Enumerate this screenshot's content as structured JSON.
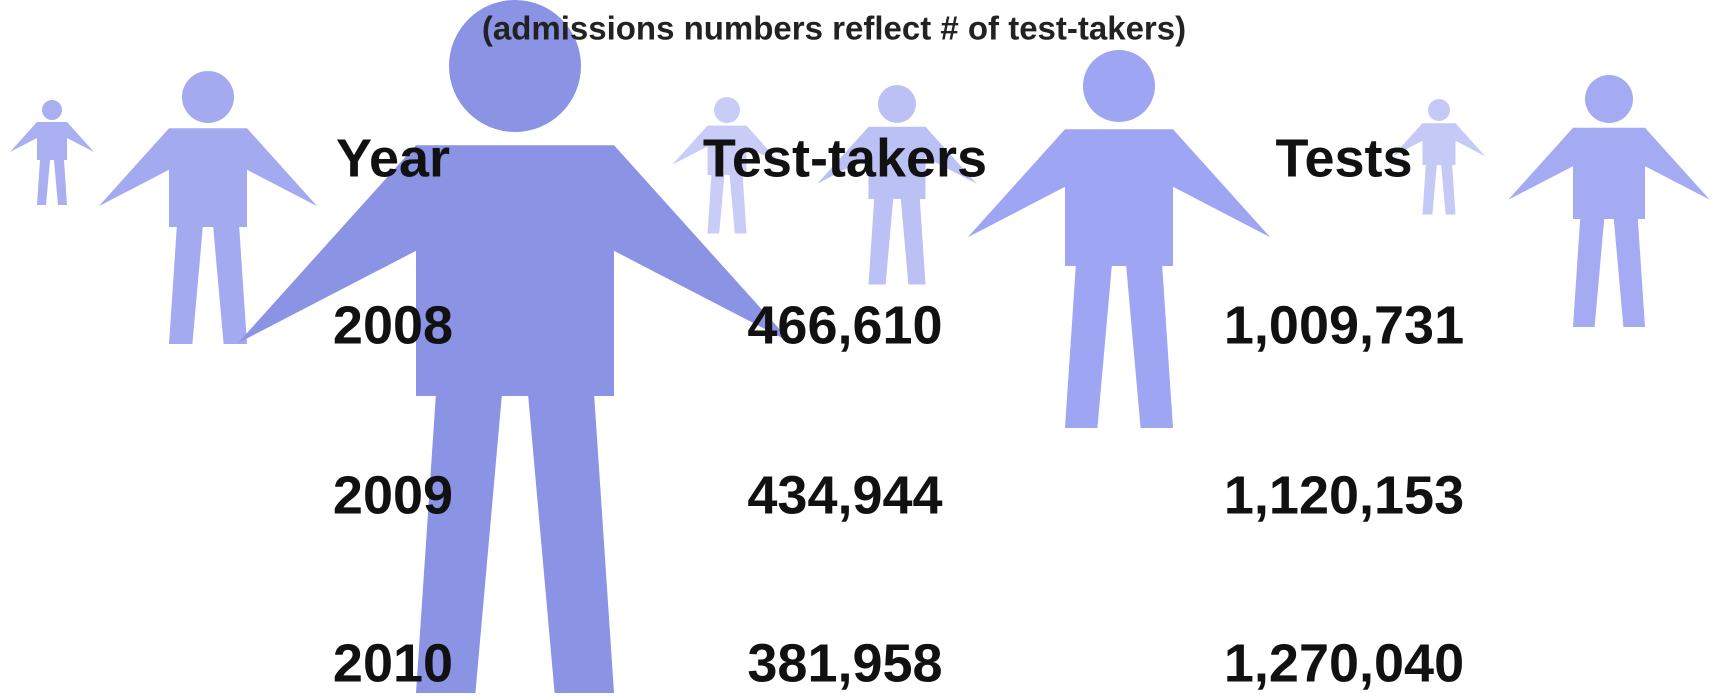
{
  "subtitle": "(admissions numbers reflect # of test-takers)",
  "table": {
    "header": [
      "Year",
      "Test-takers",
      "Tests"
    ],
    "rows": [
      [
        "2008",
        "466,610",
        "1,009,731"
      ],
      [
        "2009",
        "434,944",
        "1,120,153"
      ],
      [
        "2010",
        "381,958",
        "1,270,040"
      ]
    ]
  }
}
